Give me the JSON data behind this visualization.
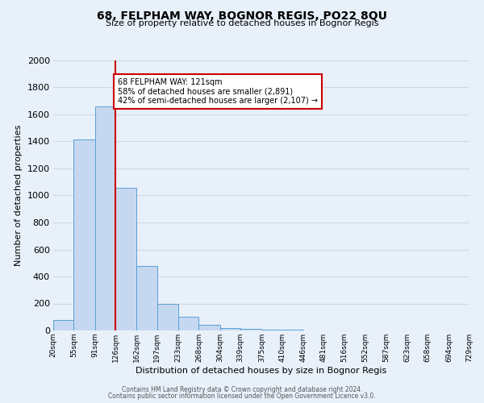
{
  "title": "68, FELPHAM WAY, BOGNOR REGIS, PO22 8QU",
  "subtitle": "Size of property relative to detached houses in Bognor Regis",
  "xlabel": "Distribution of detached houses by size in Bognor Regis",
  "ylabel": "Number of detached properties",
  "footer1": "Contains HM Land Registry data © Crown copyright and database right 2024.",
  "footer2": "Contains public sector information licensed under the Open Government Licence v3.0.",
  "annotation_line1": "68 FELPHAM WAY: 121sqm",
  "annotation_line2": "58% of detached houses are smaller (2,891)",
  "annotation_line3": "42% of semi-detached houses are larger (2,107) →",
  "property_size": 121,
  "bar_left_edges": [
    20,
    55,
    91,
    126,
    162,
    197,
    233,
    268,
    304,
    339,
    375,
    410,
    446,
    481,
    516,
    552,
    587,
    623,
    658,
    694
  ],
  "bar_widths": [
    35,
    36,
    35,
    36,
    35,
    36,
    35,
    36,
    35,
    36,
    35,
    36,
    35,
    35,
    36,
    35,
    36,
    35,
    36,
    35
  ],
  "bar_heights": [
    80,
    1415,
    1660,
    1055,
    475,
    200,
    100,
    40,
    20,
    10,
    5,
    3,
    2,
    1,
    1,
    0,
    0,
    0,
    0,
    0
  ],
  "bar_color": "#c5d8f0",
  "bar_edge_color": "#5a9fd4",
  "vline_x": 126,
  "vline_color": "#cc0000",
  "background_color": "#e8f0fa",
  "grid_color": "#d0d8e8",
  "ylim": [
    0,
    2000
  ],
  "xlim": [
    20,
    729
  ],
  "yticks": [
    0,
    200,
    400,
    600,
    800,
    1000,
    1200,
    1400,
    1600,
    1800,
    2000
  ],
  "tick_labels": [
    "20sqm",
    "55sqm",
    "91sqm",
    "126sqm",
    "162sqm",
    "197sqm",
    "233sqm",
    "268sqm",
    "304sqm",
    "339sqm",
    "375sqm",
    "410sqm",
    "446sqm",
    "481sqm",
    "516sqm",
    "552sqm",
    "587sqm",
    "623sqm",
    "658sqm",
    "694sqm",
    "729sqm"
  ],
  "tick_positions": [
    20,
    55,
    91,
    126,
    162,
    197,
    233,
    268,
    304,
    339,
    375,
    410,
    446,
    481,
    516,
    552,
    587,
    623,
    658,
    694,
    729
  ]
}
